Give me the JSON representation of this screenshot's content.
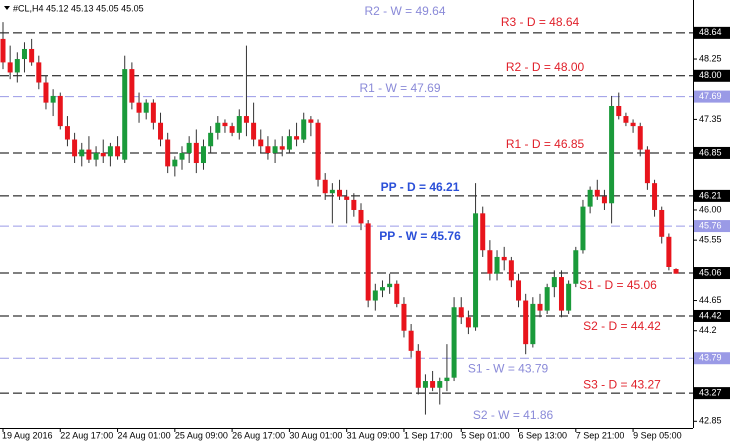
{
  "chart_data": {
    "type": "candlestick",
    "title": "#CL,H4 45.12 45.13 45.05 45.05",
    "categories": [
      "19 Aug 2016",
      null,
      null,
      null,
      null,
      null,
      null,
      null,
      "22 Aug 17:00",
      null,
      null,
      null,
      null,
      null,
      null,
      null,
      "24 Aug 01:00",
      null,
      null,
      null,
      null,
      null,
      null,
      null,
      "25 Aug 09:00",
      null,
      null,
      null,
      null,
      null,
      null,
      null,
      "26 Aug 17:00",
      null,
      null,
      null,
      null,
      null,
      null,
      null,
      "30 Aug 01:00",
      null,
      null,
      null,
      null,
      null,
      null,
      null,
      "31 Aug 09:00",
      null,
      null,
      null,
      null,
      null,
      null,
      null,
      "1 Sep 17:00",
      null,
      null,
      null,
      null,
      null,
      null,
      null,
      "5 Sep 01:00",
      null,
      null,
      null,
      null,
      null,
      null,
      null,
      "6 Sep 13:00",
      null,
      null,
      null,
      null,
      null,
      null,
      null,
      "7 Sep 21:00",
      null,
      null,
      null,
      null,
      null,
      null,
      null,
      "9 Sep 05:00",
      null,
      null,
      null,
      null,
      null,
      null
    ],
    "open": [
      48.55,
      48.2,
      48.05,
      48.25,
      48.4,
      48.2,
      47.9,
      47.6,
      47.7,
      47.25,
      47.05,
      46.8,
      46.9,
      46.75,
      46.85,
      46.8,
      46.95,
      46.75,
      48.1,
      47.6,
      47.45,
      47.6,
      47.3,
      47.05,
      46.65,
      46.75,
      46.85,
      47.0,
      46.7,
      46.95,
      47.15,
      47.3,
      47.25,
      47.15,
      47.4,
      47.3,
      47.05,
      46.95,
      46.85,
      46.95,
      46.9,
      47.1,
      47.05,
      47.35,
      47.3,
      46.45,
      46.25,
      46.3,
      46.2,
      46.15,
      46.0,
      45.8,
      44.65,
      44.8,
      44.85,
      44.9,
      44.6,
      44.2,
      43.9,
      43.35,
      43.45,
      43.35,
      43.45,
      43.5,
      44.55,
      44.4,
      44.25,
      45.95,
      45.4,
      45.05,
      45.3,
      45.25,
      44.95,
      44.65,
      44.0,
      44.6,
      44.5,
      44.85,
      45.0,
      44.5,
      44.9,
      45.4,
      46.05,
      46.3,
      46.2,
      46.1,
      47.55,
      47.4,
      47.3,
      47.25,
      46.9,
      46.4,
      46.0,
      45.6,
      45.12
    ],
    "high": [
      48.8,
      48.45,
      48.35,
      48.5,
      48.55,
      48.3,
      48.0,
      47.8,
      47.75,
      47.4,
      47.15,
      47.0,
      47.1,
      46.95,
      47.05,
      47.0,
      47.1,
      48.3,
      48.2,
      47.75,
      47.65,
      47.65,
      47.45,
      47.15,
      46.8,
      46.95,
      47.1,
      47.2,
      47.05,
      47.25,
      47.4,
      47.35,
      47.3,
      47.5,
      48.45,
      47.6,
      47.2,
      47.1,
      47.05,
      47.1,
      47.2,
      47.3,
      47.45,
      47.4,
      47.35,
      46.55,
      46.4,
      46.45,
      46.3,
      46.25,
      46.1,
      45.85,
      44.9,
      44.95,
      45.05,
      44.95,
      44.7,
      44.3,
      44.0,
      43.55,
      43.6,
      43.5,
      44.0,
      44.7,
      44.7,
      44.5,
      46.4,
      46.05,
      45.55,
      45.4,
      45.45,
      45.3,
      45.05,
      44.75,
      44.7,
      44.75,
      44.9,
      45.1,
      45.1,
      44.95,
      45.45,
      46.15,
      46.35,
      46.45,
      46.3,
      47.7,
      47.75,
      47.45,
      47.35,
      47.3,
      46.95,
      46.45,
      46.05,
      45.65,
      45.13
    ],
    "low": [
      48.1,
      47.95,
      47.9,
      48.05,
      48.15,
      47.8,
      47.5,
      47.4,
      47.2,
      46.95,
      46.7,
      46.65,
      46.7,
      46.65,
      46.7,
      46.65,
      46.75,
      46.7,
      47.5,
      47.3,
      47.35,
      47.2,
      46.95,
      46.55,
      46.5,
      46.6,
      46.7,
      46.55,
      46.6,
      46.85,
      47.05,
      47.15,
      47.1,
      47.05,
      47.1,
      46.95,
      46.85,
      46.75,
      46.7,
      46.8,
      46.85,
      46.95,
      47.0,
      47.1,
      46.35,
      46.15,
      45.8,
      46.15,
      45.8,
      45.9,
      45.7,
      44.55,
      44.5,
      44.7,
      44.75,
      44.55,
      44.1,
      43.8,
      43.25,
      42.95,
      43.3,
      43.1,
      43.3,
      43.45,
      44.3,
      44.15,
      44.2,
      45.3,
      44.95,
      44.95,
      45.1,
      44.85,
      44.55,
      43.85,
      43.95,
      44.4,
      44.45,
      44.7,
      44.4,
      44.45,
      44.85,
      45.35,
      45.95,
      46.15,
      46.0,
      45.8,
      47.35,
      47.25,
      47.15,
      46.8,
      46.3,
      45.9,
      45.5,
      45.1,
      45.05
    ],
    "close": [
      48.2,
      48.05,
      48.25,
      48.4,
      48.2,
      47.9,
      47.6,
      47.7,
      47.25,
      47.05,
      46.8,
      46.9,
      46.75,
      46.85,
      46.8,
      46.95,
      46.8,
      48.1,
      47.6,
      47.45,
      47.6,
      47.3,
      47.05,
      46.65,
      46.75,
      46.85,
      47.0,
      46.7,
      46.95,
      47.15,
      47.3,
      47.25,
      47.15,
      47.4,
      47.3,
      47.05,
      46.95,
      46.85,
      46.95,
      46.9,
      47.1,
      47.05,
      47.35,
      47.3,
      46.45,
      46.25,
      46.3,
      46.2,
      46.15,
      46.0,
      45.8,
      44.65,
      44.8,
      44.85,
      44.9,
      44.6,
      44.2,
      43.9,
      43.35,
      43.45,
      43.35,
      43.45,
      43.5,
      44.55,
      44.4,
      44.25,
      45.95,
      45.4,
      45.05,
      45.3,
      45.25,
      44.95,
      44.65,
      44.0,
      44.6,
      44.5,
      44.85,
      45.0,
      44.5,
      44.9,
      45.4,
      46.05,
      46.3,
      46.2,
      46.1,
      47.55,
      47.4,
      47.3,
      47.25,
      46.9,
      46.4,
      46.0,
      45.6,
      45.15,
      45.05
    ],
    "up_color": "#1a9a3a",
    "down_color": "#e8141c",
    "ylim": [
      42.75,
      49.13
    ],
    "yticks": [
      48.25,
      47.35,
      {
        "value": 46,
        "label": "46.00"
      },
      45.55,
      44.65,
      44.2,
      42.85
    ],
    "levels": [
      {
        "label": "R2 - W = 49.64",
        "value": 49.64,
        "color": "#8a8ad8",
        "kind": "weekly"
      },
      {
        "label": "R3 - D = 48.64",
        "value": 48.64,
        "color": "#e0202a",
        "kind": "daily"
      },
      {
        "label": "R2 - D = 48.00",
        "value": {
          "value": 48,
          "label": "48.00"
        },
        "color": "#e0202a",
        "kind": "daily"
      },
      {
        "label": "R1 - W = 47.69",
        "value": 47.69,
        "color": "#8a8ad8",
        "kind": "weekly"
      },
      {
        "label": "R1 - D = 46.85",
        "value": 46.85,
        "color": "#e0202a",
        "kind": "daily"
      },
      {
        "label": "PP - D = 46.21",
        "value": 46.21,
        "color": "#2a4fd8",
        "kind": "daily"
      },
      {
        "label": "PP - W = 45.76",
        "value": 45.76,
        "color": "#2a4fd8",
        "kind": "weekly"
      },
      {
        "label": "S1 - D = 45.06",
        "value": 45.06,
        "color": "#e0202a",
        "kind": "daily"
      },
      {
        "label": "S2 - D = 44.42",
        "value": 44.42,
        "color": "#e0202a",
        "kind": "daily"
      },
      {
        "label": "S1 - W = 43.79",
        "value": 43.79,
        "color": "#8a8ad8",
        "kind": "weekly"
      },
      {
        "label": "S3 - D = 43.27",
        "value": 43.27,
        "color": "#e0202a",
        "kind": "daily"
      },
      {
        "label": "S2 - W = 41.86",
        "value": 41.86,
        "color": "#8a8ad8",
        "kind": "weekly"
      }
    ]
  }
}
